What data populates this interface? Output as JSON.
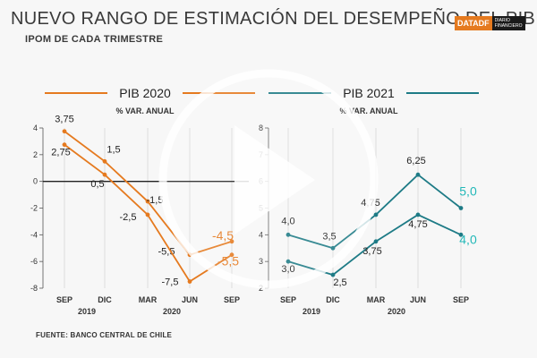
{
  "title": "NUEVO RANGO DE ESTIMACIÓN DEL DESEMPEÑO DEL PIB",
  "subtitle": "IPOM DE CADA TRIMESTRE",
  "brand": {
    "part1": "DATADF",
    "part2": "DIARIO FINANCIERO"
  },
  "source": "FUENTE: BANCO CENTRAL DE CHILE",
  "colors": {
    "pib2020": "#e57a1f",
    "pib2021": "#1e7b86",
    "highlight2021": "#23b8b8"
  },
  "chart_data": [
    {
      "type": "line",
      "title": "PIB 2020",
      "subtitle": "% VAR. ANUAL",
      "categories": [
        "SEP",
        "DIC",
        "MAR",
        "JUN",
        "SEP"
      ],
      "year_labels": [
        {
          "label": "2019",
          "under": 1
        },
        {
          "label": "2020",
          "under": 3
        }
      ],
      "ylim": [
        -8,
        4
      ],
      "yticks": [
        4,
        2,
        0,
        -2,
        -4,
        -6,
        -8
      ],
      "series": [
        {
          "values": [
            3.75,
            1.5,
            -1.5,
            -5.5,
            -4.5
          ],
          "labels": [
            "3,75",
            "1,5",
            "-1,5",
            "-5,5",
            "-4,5"
          ]
        },
        {
          "values": [
            2.75,
            0.5,
            -2.5,
            -7.5,
            -5.5
          ],
          "labels": [
            "2,75",
            "0,5",
            "-2,5",
            "-7,5",
            "-5,5"
          ]
        }
      ]
    },
    {
      "type": "line",
      "title": "PIB 2021",
      "subtitle": "% VAR. ANUAL",
      "categories": [
        "SEP",
        "DIC",
        "MAR",
        "JUN",
        "SEP"
      ],
      "year_labels": [
        {
          "label": "2019",
          "under": 1
        },
        {
          "label": "2020",
          "under": 3
        }
      ],
      "ylim": [
        2,
        8
      ],
      "yticks": [
        8,
        7,
        6,
        5,
        4,
        3,
        2
      ],
      "series": [
        {
          "values": [
            4.0,
            3.5,
            4.75,
            6.25,
            5.0
          ],
          "labels": [
            "4,0",
            "3,5",
            "4,75",
            "6,25",
            "5,0"
          ]
        },
        {
          "values": [
            3.0,
            2.5,
            3.75,
            4.75,
            4.0
          ],
          "labels": [
            "3,0",
            "2,5",
            "3,75",
            "4,75",
            "4,0"
          ]
        }
      ]
    }
  ]
}
